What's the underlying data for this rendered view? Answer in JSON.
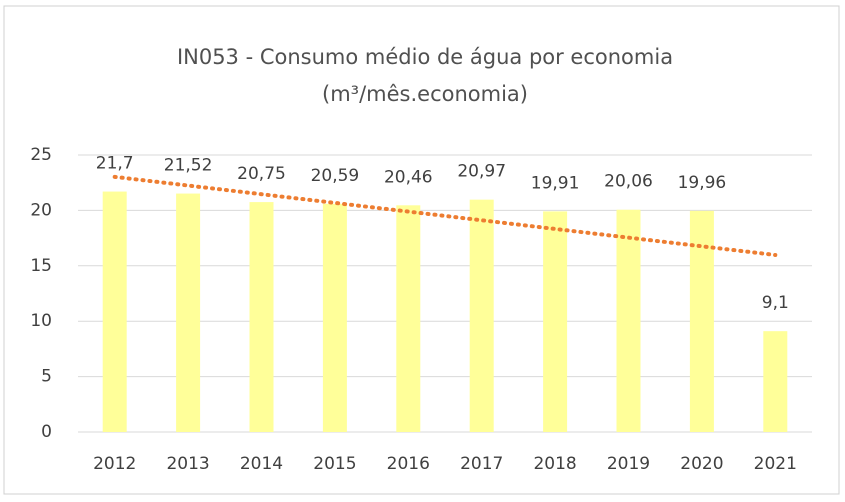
{
  "chart_data": {
    "type": "bar",
    "title": [
      "IN053 - Consumo médio de água por economia",
      "(m³/mês.economia)"
    ],
    "categories": [
      "2012",
      "2013",
      "2014",
      "2015",
      "2016",
      "2017",
      "2018",
      "2019",
      "2020",
      "2021"
    ],
    "values": [
      21.7,
      21.52,
      20.75,
      20.59,
      20.46,
      20.97,
      19.91,
      20.06,
      19.96,
      9.1
    ],
    "value_labels": [
      "21,7",
      "21,52",
      "20,75",
      "20,59",
      "20,46",
      "20,97",
      "19,91",
      "20,06",
      "19,96",
      "9,1"
    ],
    "color": "#ffff99",
    "trendline": {
      "type": "linear",
      "color": "#ed7d31"
    },
    "ylim": [
      0,
      25
    ],
    "yticks": [
      0,
      5,
      10,
      15,
      20,
      25
    ],
    "grid": true
  }
}
